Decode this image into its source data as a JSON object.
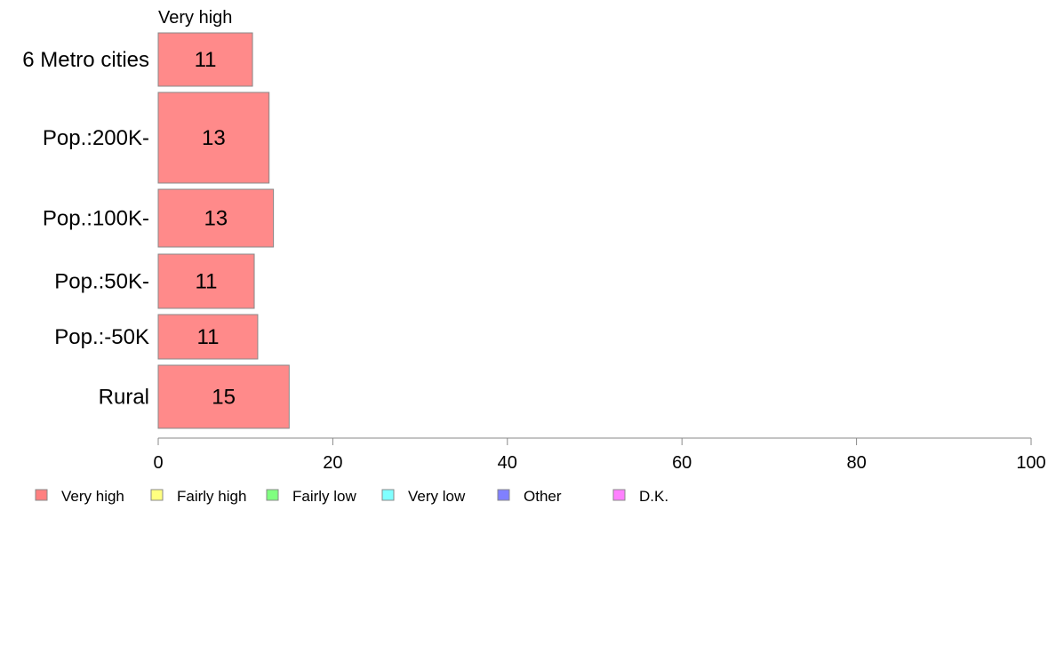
{
  "chart_data": {
    "type": "bar",
    "orientation": "horizontal",
    "series_label": "Very high",
    "categories": [
      "6 Metro cities",
      "Pop.:200K-",
      "Pop.:100K-",
      "Pop.:50K-",
      "Pop.:-50K",
      "Rural"
    ],
    "values": [
      11,
      13,
      13,
      11,
      11,
      15
    ],
    "data_labels": [
      "11",
      "13",
      "13",
      "11",
      "11",
      "15"
    ],
    "plotted_values": [
      10.8,
      12.7,
      13.2,
      11.0,
      11.4,
      15.0
    ],
    "xlim": [
      0,
      100
    ],
    "xticks": [
      0,
      20,
      40,
      60,
      80,
      100
    ],
    "grid": false,
    "bar_color": "#ff8a8a",
    "bar_edge_color": "#888888",
    "legend": {
      "placement": "bottom-left",
      "items": [
        {
          "label": "Very high",
          "color": "#ff8080"
        },
        {
          "label": "Fairly high",
          "color": "#ffff80"
        },
        {
          "label": "Fairly low",
          "color": "#80ff80"
        },
        {
          "label": "Very low",
          "color": "#80ffff"
        },
        {
          "label": "Other",
          "color": "#8080ff"
        },
        {
          "label": "D.K.",
          "color": "#ff80ff"
        }
      ]
    }
  }
}
